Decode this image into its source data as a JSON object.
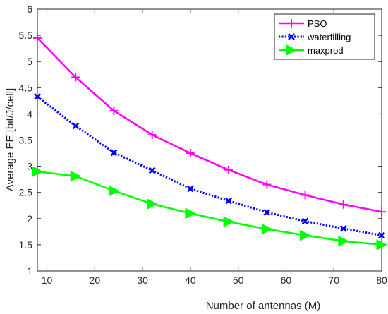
{
  "chart_data": {
    "type": "line",
    "title": "",
    "xlabel": "Number of antennas (M)",
    "ylabel": "Average EE [bit/J/cell]",
    "xlim": [
      8,
      80
    ],
    "ylim": [
      1,
      6
    ],
    "xticks": [
      10,
      20,
      30,
      40,
      50,
      60,
      70,
      80
    ],
    "yticks": [
      1,
      1.5,
      2,
      2.5,
      3,
      3.5,
      4,
      4.5,
      5,
      5.5,
      6
    ],
    "grid": false,
    "legend_position": "top-right",
    "x": [
      8,
      16,
      24,
      32,
      40,
      48,
      56,
      64,
      72,
      80
    ],
    "series": [
      {
        "name": "PSO",
        "color": "#ff00ff",
        "line_style": "solid",
        "marker": "plus",
        "values": [
          5.45,
          4.7,
          4.06,
          3.6,
          3.25,
          2.93,
          2.65,
          2.45,
          2.27,
          2.13
        ]
      },
      {
        "name": "waterfilling",
        "color": "#0000ff",
        "line_style": "dotted",
        "marker": "x",
        "values": [
          4.33,
          3.77,
          3.26,
          2.92,
          2.57,
          2.34,
          2.12,
          1.95,
          1.81,
          1.68
        ]
      },
      {
        "name": "maxprod",
        "color": "#00ff00",
        "line_style": "solid",
        "marker": "triangle-right",
        "values": [
          2.9,
          2.81,
          2.53,
          2.28,
          2.1,
          1.94,
          1.8,
          1.68,
          1.57,
          1.5
        ]
      }
    ]
  }
}
